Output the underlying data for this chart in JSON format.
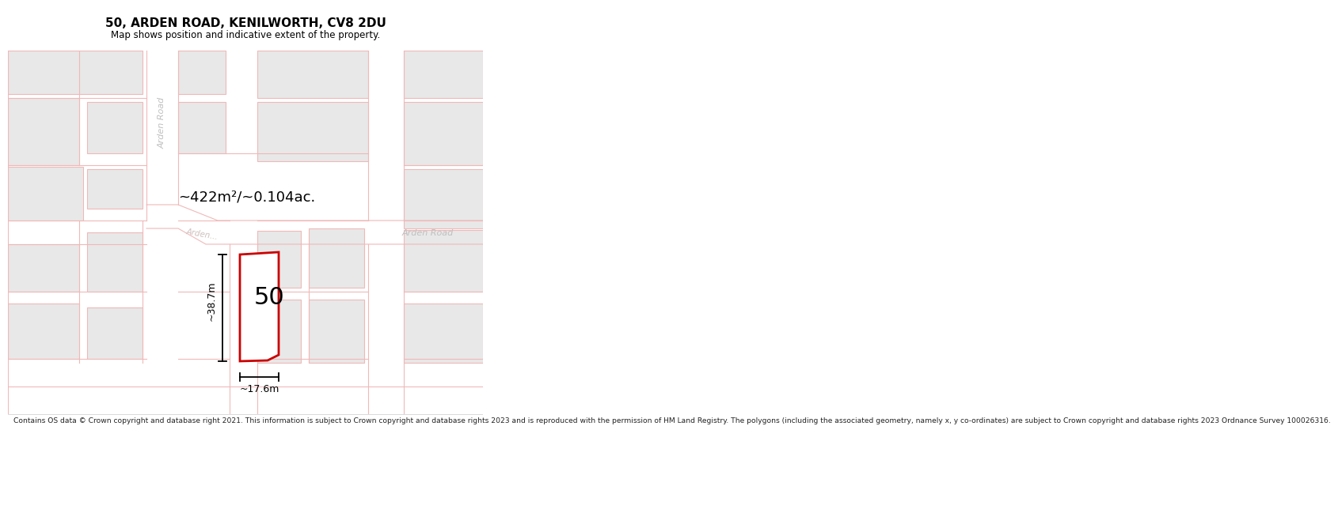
{
  "title": "50, ARDEN ROAD, KENILWORTH, CV8 2DU",
  "subtitle": "Map shows position and indicative extent of the property.",
  "area_label": "~422m²/~0.104ac.",
  "width_label": "~17.6m",
  "height_label": "~38.7m",
  "plot_number": "50",
  "footer": "Contains OS data © Crown copyright and database right 2021. This information is subject to Crown copyright and database rights 2023 and is reproduced with the permission of HM Land Registry. The polygons (including the associated geometry, namely x, y co-ordinates) are subject to Crown copyright and database rights 2023 Ordnance Survey 100026316.",
  "map_bg": "#f7f7f7",
  "building_fill": "#e8e8e8",
  "building_edge_light": "#f0b8b8",
  "road_fill": "#ffffff",
  "road_edge": "#f0b8b8",
  "plot_fill": "#ffffff",
  "plot_edge": "#cc0000",
  "dim_color": "#000000",
  "road_label_color": "#c0c0c0",
  "title_color": "#000000",
  "footer_color": "#222222"
}
